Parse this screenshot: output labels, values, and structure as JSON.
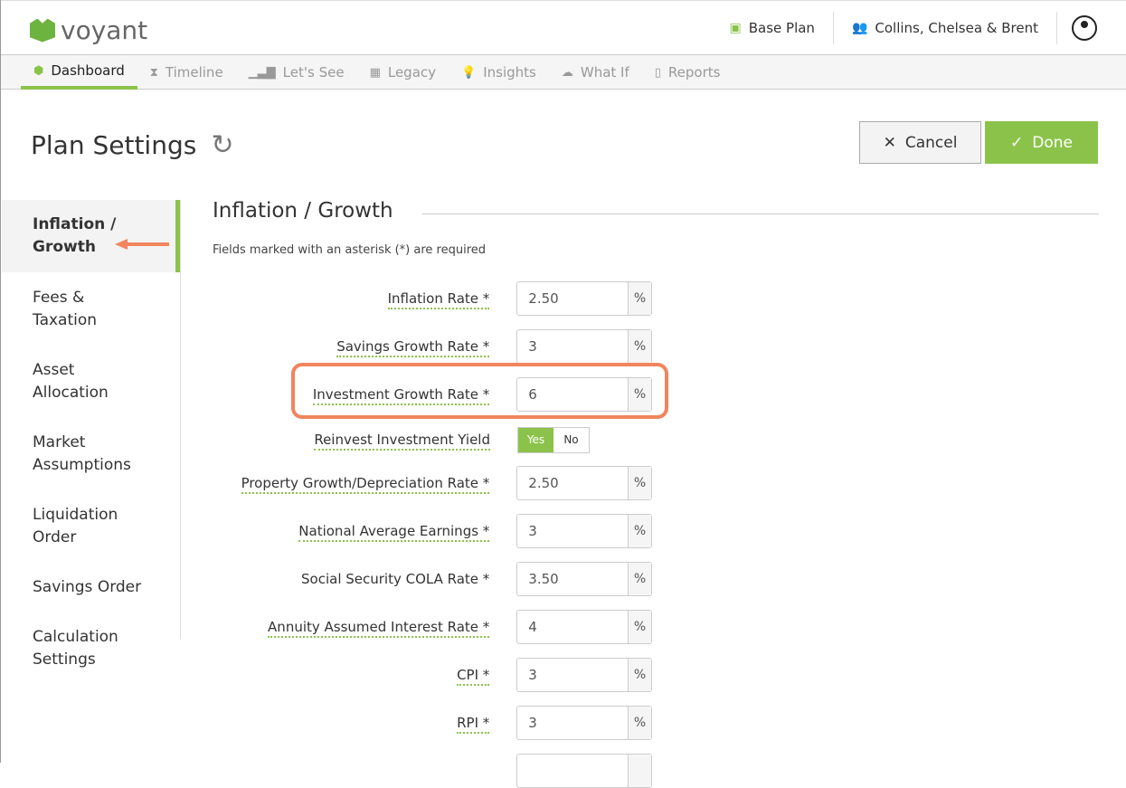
{
  "brand": {
    "name": "voyant"
  },
  "header": {
    "plan": "Base Plan",
    "client": "Collins, Chelsea & Brent"
  },
  "nav": [
    {
      "label": "Dashboard",
      "icon": "cube-icon"
    },
    {
      "label": "Timeline",
      "icon": "hourglass-icon"
    },
    {
      "label": "Let's See",
      "icon": "bar-chart-icon"
    },
    {
      "label": "Legacy",
      "icon": "gift-icon"
    },
    {
      "label": "Insights",
      "icon": "lightbulb-icon"
    },
    {
      "label": "What If",
      "icon": "brain-icon"
    },
    {
      "label": "Reports",
      "icon": "pdf-icon"
    }
  ],
  "page": {
    "title": "Plan Settings",
    "cancel": "Cancel",
    "done": "Done"
  },
  "sidebar": [
    "Inflation / Growth",
    "Fees & Taxation",
    "Asset Allocation",
    "Market Assumptions",
    "Liquidation Order",
    "Savings Order",
    "Calculation Settings"
  ],
  "section": {
    "title": "Inflation / Growth",
    "required_note": "Fields marked with an asterisk (*) are required"
  },
  "fields": [
    {
      "label": "Inflation Rate *",
      "value": "2.50",
      "unit": "%"
    },
    {
      "label": "Savings Growth Rate *",
      "value": "3",
      "unit": "%"
    },
    {
      "label": "Investment Growth Rate *",
      "value": "6",
      "unit": "%"
    },
    {
      "label": "Reinvest Investment Yield",
      "yes": "Yes",
      "no": "No",
      "selected": "Yes"
    },
    {
      "label": "Property Growth/Depreciation Rate *",
      "value": "2.50",
      "unit": "%"
    },
    {
      "label": "National Average Earnings *",
      "value": "3",
      "unit": "%"
    },
    {
      "label": "Social Security COLA Rate *",
      "value": "3.50",
      "unit": "%"
    },
    {
      "label": "Annuity Assumed Interest Rate *",
      "value": "4",
      "unit": "%"
    },
    {
      "label": "CPI *",
      "value": "3",
      "unit": "%"
    },
    {
      "label": "RPI *",
      "value": "3",
      "unit": "%"
    }
  ],
  "colors": {
    "accent": "#8bc34a",
    "highlight": "#f0855e"
  }
}
